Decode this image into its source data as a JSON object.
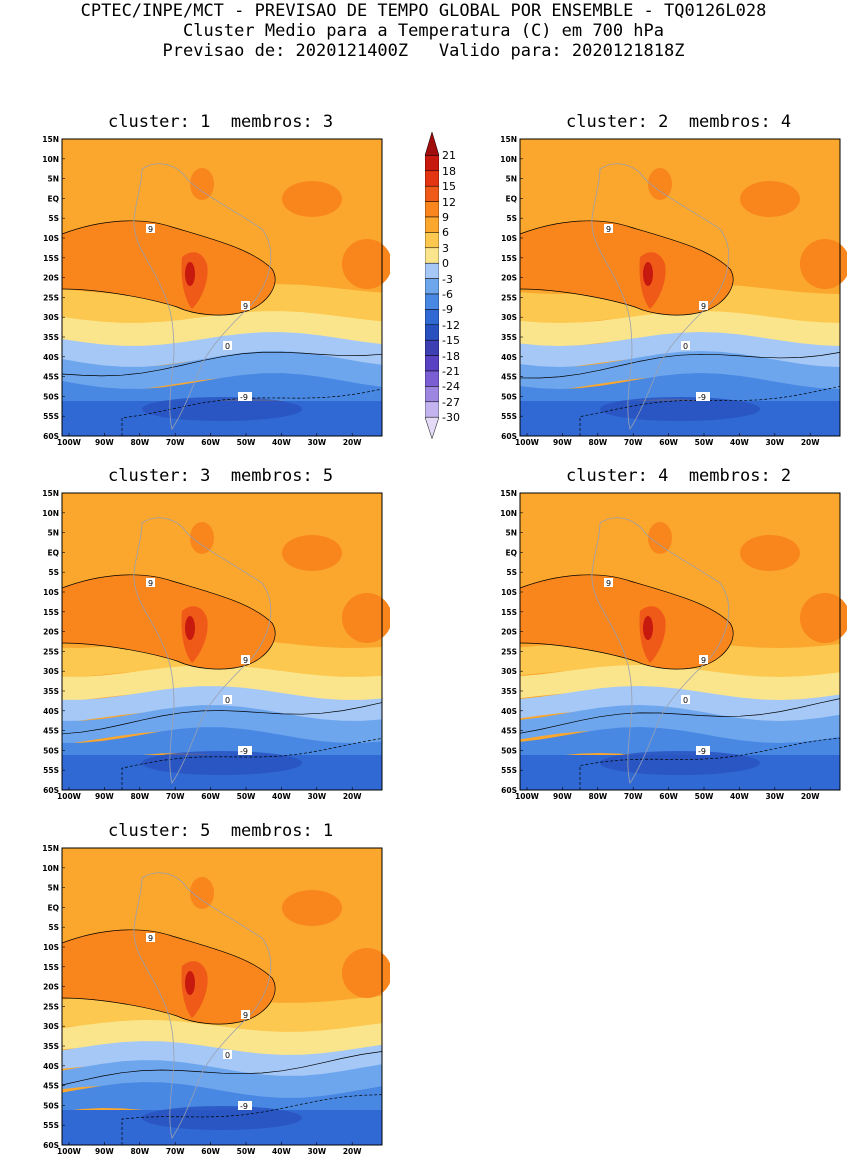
{
  "header": {
    "line1": "CPTEC/INPE/MCT - PREVISAO DE TEMPO GLOBAL POR ENSEMBLE - TQ0126L028",
    "line2": "Cluster Medio para a Temperatura (C) em 700 hPa",
    "line3": "Previsao de: 2020121400Z   Valido para: 2020121818Z"
  },
  "panels": [
    {
      "title": "cluster: 1  membros: 3"
    },
    {
      "title": "cluster: 2  membros: 4"
    },
    {
      "title": "cluster: 3  membros: 5"
    },
    {
      "title": "cluster: 4  membros: 2"
    },
    {
      "title": "cluster: 5  membros: 1"
    }
  ],
  "lat_ticks": [
    "15N",
    "10N",
    "5N",
    "EQ",
    "5S",
    "10S",
    "15S",
    "20S",
    "25S",
    "30S",
    "35S",
    "40S",
    "45S",
    "50S",
    "55S",
    "60S"
  ],
  "lon_ticks": [
    "100W",
    "90W",
    "80W",
    "70W",
    "60W",
    "50W",
    "40W",
    "30W",
    "20W"
  ],
  "contour_labels": {
    "nine": "9",
    "zero": "0",
    "minus_nine": "-9"
  },
  "colorbar": {
    "labels": [
      "21",
      "18",
      "15",
      "12",
      "9",
      "6",
      "3",
      "0",
      "-3",
      "-6",
      "-9",
      "-12",
      "-15",
      "-18",
      "-21",
      "-24",
      "-27",
      "-30"
    ],
    "colors": [
      "#a10c0c",
      "#c8190f",
      "#e33512",
      "#f05a18",
      "#f9851d",
      "#fba62c",
      "#fcc84f",
      "#fbe58c",
      "#a5c8f6",
      "#6ea6ee",
      "#4888e3",
      "#3069d3",
      "#2851bf",
      "#3d3fb2",
      "#5a43c2",
      "#7b5ed4",
      "#9c86e0",
      "#c3b3ee",
      "#e4dcf7"
    ]
  }
}
